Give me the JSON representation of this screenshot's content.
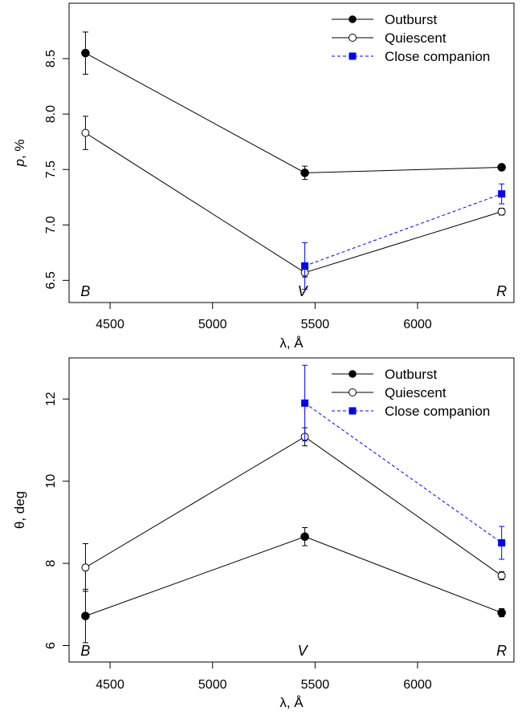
{
  "chart_data": [
    {
      "type": "line",
      "xlabel": "λ, Å",
      "ylabel": "p, %",
      "xlim": [
        4300,
        6470
      ],
      "ylim": [
        6.3,
        9.0
      ],
      "xticks": [
        4500,
        5000,
        5500,
        6000
      ],
      "xtick_labels": [
        "4500",
        "5000",
        "5500",
        "6000"
      ],
      "yticks": [
        6.5,
        7.0,
        7.5,
        8.0,
        8.5
      ],
      "ytick_labels": [
        "6.5",
        "7.0",
        "7.5",
        "8.0",
        "8.5"
      ],
      "band_labels": [
        {
          "text": "B",
          "x": 4380
        },
        {
          "text": "V",
          "x": 5450
        },
        {
          "text": "R",
          "x": 6410
        }
      ],
      "legend_position": "top-right",
      "series": [
        {
          "name": "Outburst",
          "marker": "filled-circle",
          "line": "solid",
          "color": "#000000",
          "x": [
            4380,
            5450,
            6410
          ],
          "y": [
            8.55,
            7.47,
            7.52
          ],
          "err": [
            0.19,
            0.06,
            0.02
          ]
        },
        {
          "name": "Quiescent",
          "marker": "open-circle",
          "line": "solid",
          "color": "#000000",
          "x": [
            4380,
            5450,
            6410
          ],
          "y": [
            7.83,
            6.57,
            7.12
          ],
          "err": [
            0.15,
            0.04,
            0.03
          ]
        },
        {
          "name": "Close companion",
          "marker": "filled-square",
          "line": "dashed",
          "color": "#0000ff",
          "x": [
            5450,
            6410
          ],
          "y": [
            6.63,
            7.28
          ],
          "err": [
            0.21,
            0.09
          ]
        }
      ]
    },
    {
      "type": "line",
      "xlabel": "λ, Å",
      "ylabel": "θ, deg",
      "xlim": [
        4300,
        6470
      ],
      "ylim": [
        5.6,
        13.0
      ],
      "xticks": [
        4500,
        5000,
        5500,
        6000
      ],
      "xtick_labels": [
        "4500",
        "5000",
        "5500",
        "6000"
      ],
      "yticks": [
        6,
        8,
        10,
        12
      ],
      "ytick_labels": [
        "6",
        "8",
        "10",
        "12"
      ],
      "band_labels": [
        {
          "text": "B",
          "x": 4380
        },
        {
          "text": "V",
          "x": 5450
        },
        {
          "text": "R",
          "x": 6410
        }
      ],
      "legend_position": "top-right",
      "series": [
        {
          "name": "Outburst",
          "marker": "filled-circle",
          "line": "solid",
          "color": "#000000",
          "x": [
            4380,
            5450,
            6410
          ],
          "y": [
            6.72,
            8.65,
            6.8
          ],
          "err": [
            0.65,
            0.22,
            0.1
          ]
        },
        {
          "name": "Quiescent",
          "marker": "open-circle",
          "line": "solid",
          "color": "#000000",
          "x": [
            4380,
            5450,
            6410
          ],
          "y": [
            7.9,
            11.08,
            7.7
          ],
          "err": [
            0.58,
            0.22,
            0.1
          ]
        },
        {
          "name": "Close companion",
          "marker": "filled-square",
          "line": "dashed",
          "color": "#0000ff",
          "x": [
            5450,
            6410
          ],
          "y": [
            11.9,
            8.5
          ],
          "err": [
            0.92,
            0.4
          ]
        }
      ]
    }
  ]
}
